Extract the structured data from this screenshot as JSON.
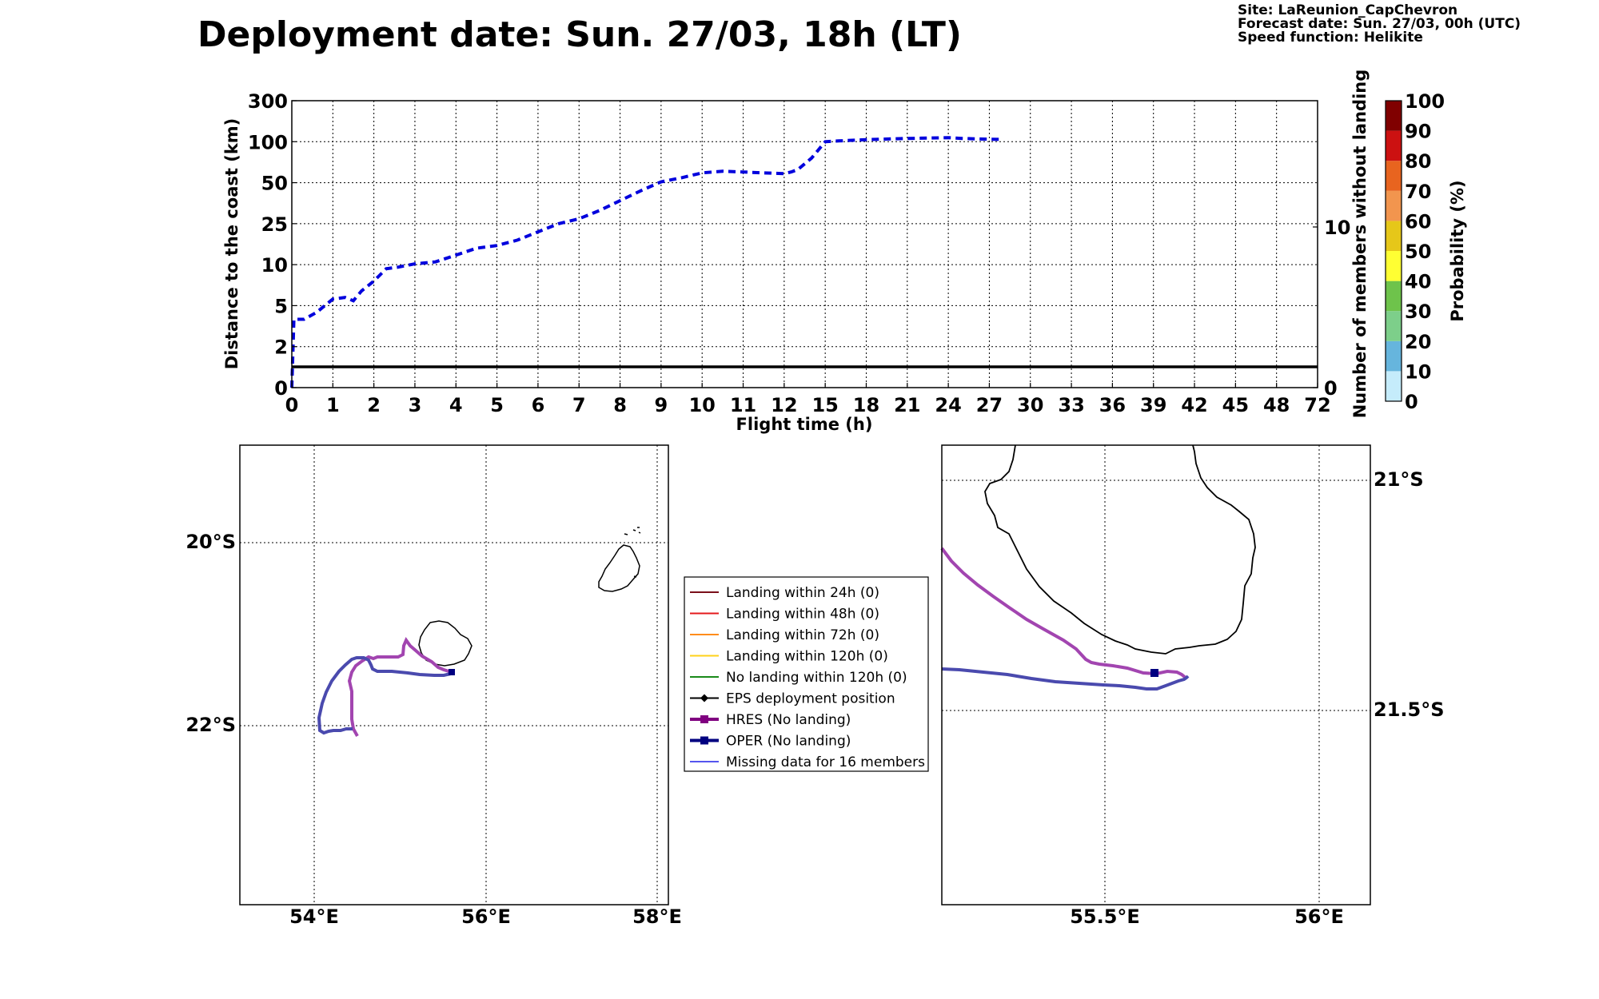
{
  "header": {
    "title": "Deployment date: Sun. 27/03, 18h (LT)",
    "site": "Site: LaReunion_CapChevron",
    "forecast_date": "Forecast date: Sun. 27/03, 00h (UTC)",
    "speed_function": "Speed function: Helikite"
  },
  "chart_data": [
    {
      "type": "line",
      "xlabel": "Flight time (h)",
      "ylabel": "Distance to the coast (km)",
      "y2label": "Number of members without landing",
      "x_ticks": [
        "0",
        "1",
        "2",
        "3",
        "4",
        "5",
        "6",
        "7",
        "8",
        "9",
        "10",
        "11",
        "12",
        "15",
        "18",
        "21",
        "24",
        "27",
        "30",
        "33",
        "36",
        "39",
        "42",
        "45",
        "48",
        "72"
      ],
      "y_ticks": [
        "0",
        "2",
        "5",
        "10",
        "25",
        "50",
        "100",
        "300"
      ],
      "y2_ticks": [
        "0",
        "10"
      ],
      "grid": true,
      "series": [
        {
          "color": "#0000dd",
          "style": "dashed",
          "points": [
            [
              0,
              0
            ],
            [
              0.05,
              4
            ],
            [
              0.3,
              4
            ],
            [
              0.6,
              4.5
            ],
            [
              1,
              5.8
            ],
            [
              1.3,
              6
            ],
            [
              1.5,
              5.6
            ],
            [
              1.7,
              6.8
            ],
            [
              2,
              8
            ],
            [
              2.3,
              9.5
            ],
            [
              2.6,
              9.7
            ],
            [
              3,
              10.3
            ],
            [
              3.5,
              11
            ],
            [
              4,
              13.5
            ],
            [
              4.5,
              16
            ],
            [
              5,
              17
            ],
            [
              5.5,
              19
            ],
            [
              6,
              22
            ],
            [
              6.5,
              25
            ],
            [
              7,
              28
            ],
            [
              7.5,
              33
            ],
            [
              8,
              39
            ],
            [
              8.5,
              45
            ],
            [
              9,
              51
            ],
            [
              9.5,
              56
            ],
            [
              10,
              62
            ],
            [
              10.5,
              64
            ],
            [
              11,
              63
            ],
            [
              11.5,
              62
            ],
            [
              12,
              61
            ],
            [
              12.5,
              63
            ],
            [
              13,
              66
            ],
            [
              14,
              80
            ],
            [
              15,
              100
            ],
            [
              16,
              104
            ],
            [
              17,
              107
            ],
            [
              18,
              110
            ],
            [
              20,
              114
            ],
            [
              22,
              117
            ],
            [
              24,
              120
            ],
            [
              25,
              116
            ],
            [
              26.5,
              113
            ],
            [
              28,
              111
            ]
          ]
        },
        {
          "color": "#000000",
          "style": "solid",
          "note_value": 1,
          "points": [
            [
              0,
              1
            ],
            [
              72,
              1
            ]
          ]
        }
      ]
    },
    {
      "type": "heatmap",
      "colorbar_label": "Probability (%)",
      "ticks": [
        "0",
        "10",
        "20",
        "30",
        "40",
        "50",
        "60",
        "70",
        "80",
        "90",
        "100"
      ],
      "colors": [
        "#c5ecfb",
        "#66b5dd",
        "#7dcf8a",
        "#6ec34b",
        "#ffff33",
        "#e6c719",
        "#f2954e",
        "#e8641f",
        "#cc1111",
        "#800000"
      ]
    }
  ],
  "map_left": {
    "lon_labels": [
      "54°E",
      "56°E",
      "58°E"
    ],
    "lat_labels": [
      "20°S",
      "22°S"
    ]
  },
  "map_right": {
    "lon_labels": [
      "55.5°E",
      "56°E"
    ],
    "lat_labels": [
      "21°S",
      "21.5°S"
    ]
  },
  "legend": {
    "items": [
      {
        "label": "Landing within 24h (0)",
        "color": "#7a0f1a",
        "marker": "none"
      },
      {
        "label": "Landing within 48h (0)",
        "color": "#e41a1c",
        "marker": "none"
      },
      {
        "label": "Landing within 72h (0)",
        "color": "#ff8c1a",
        "marker": "none"
      },
      {
        "label": "Landing within 120h (0)",
        "color": "#ffd21a",
        "marker": "none"
      },
      {
        "label": "No landing within 120h (0)",
        "color": "#1a8a1a",
        "marker": "none"
      },
      {
        "label": "EPS deployment position",
        "color": "#000000",
        "marker": "diamond"
      },
      {
        "label": "HRES (No landing)",
        "color": "#800080",
        "marker": "square"
      },
      {
        "label": "OPER (No landing)",
        "color": "#000080",
        "marker": "square"
      },
      {
        "label": "Missing data for 16 members",
        "color": "#5555ee",
        "marker": "none"
      }
    ]
  },
  "colors": {
    "hres": "#a245b0",
    "oper": "#4a4aae",
    "dashed_series": "#0000dd"
  }
}
